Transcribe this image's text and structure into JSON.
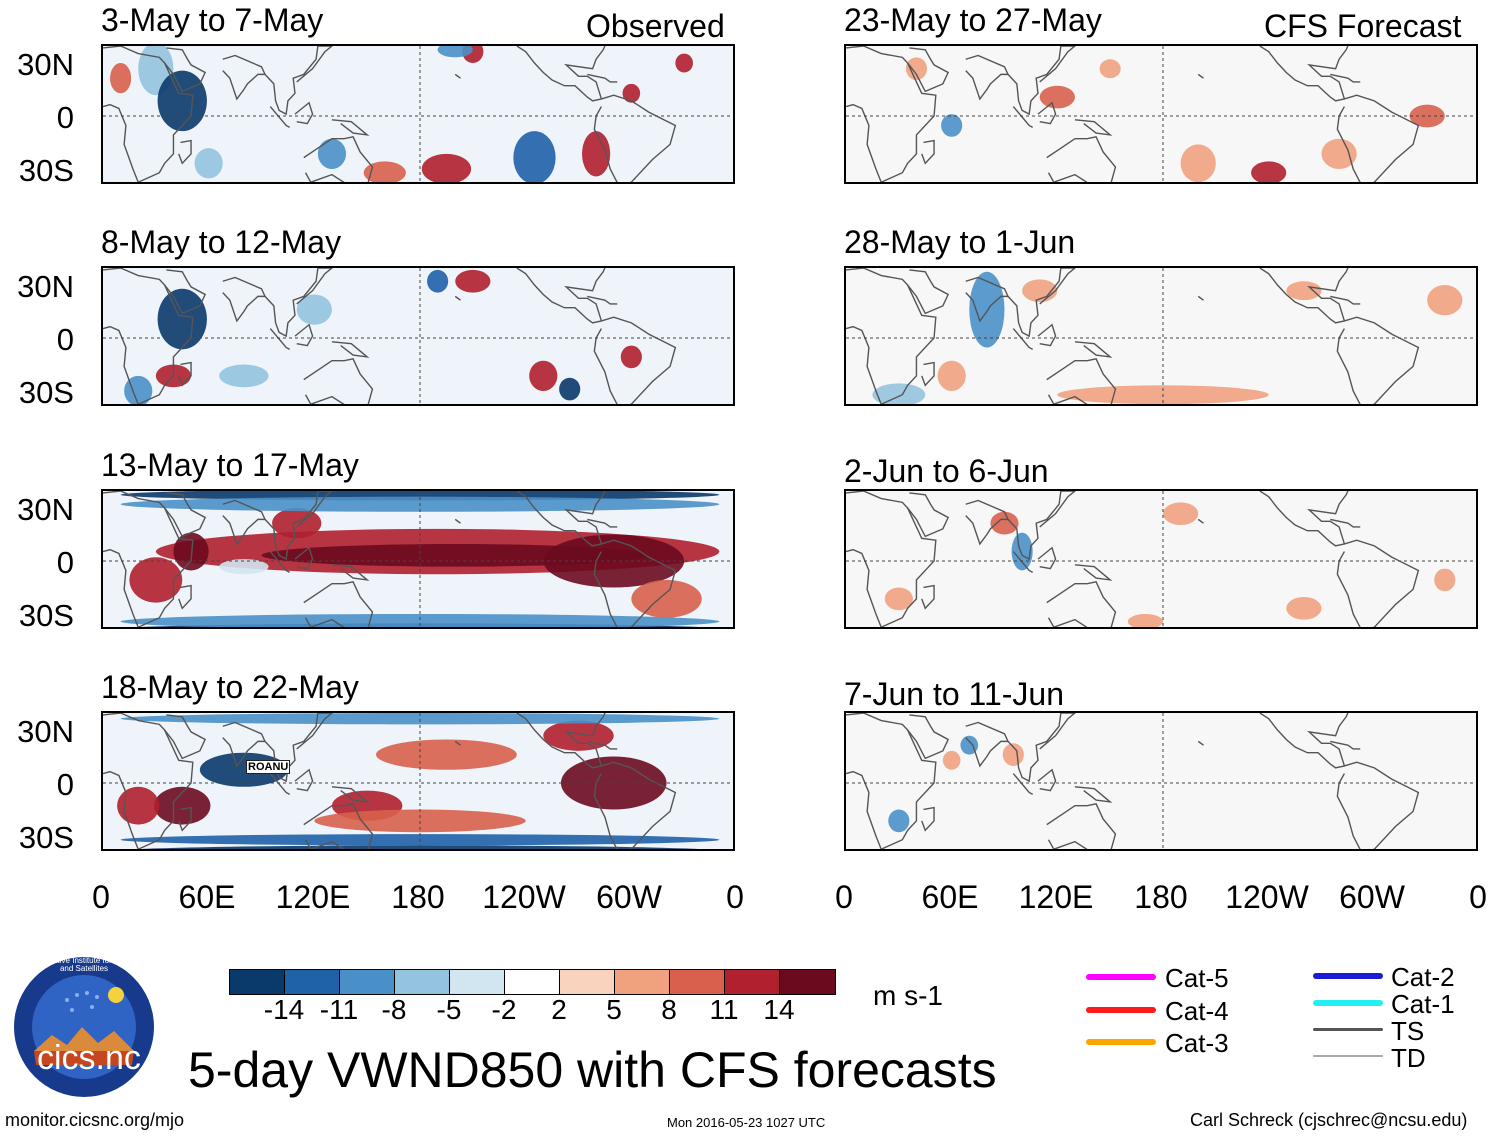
{
  "header": {
    "observed_label": "Observed",
    "forecast_label": "CFS Forecast"
  },
  "panels": {
    "observed": [
      {
        "period": "3-May to 7-May"
      },
      {
        "period": "8-May to 12-May"
      },
      {
        "period": "13-May to 17-May"
      },
      {
        "period": "18-May to 22-May",
        "storm": "ROANU"
      }
    ],
    "forecast": [
      {
        "period": "23-May to 27-May"
      },
      {
        "period": "28-May to 1-Jun"
      },
      {
        "period": "2-Jun to 6-Jun"
      },
      {
        "period": "7-Jun to 11-Jun"
      }
    ]
  },
  "axes": {
    "lat_labels": [
      "30N",
      "0",
      "30S"
    ],
    "lon_labels": [
      "0",
      "60E",
      "120E",
      "180",
      "120W",
      "60W",
      "0"
    ]
  },
  "colorbar": {
    "ticks": [
      "-14",
      "-11",
      "-8",
      "-5",
      "-2",
      "2",
      "5",
      "8",
      "11",
      "14"
    ],
    "units": "m s-1",
    "colors": [
      "#0a3a6b",
      "#1f62a8",
      "#4a90c8",
      "#93c3de",
      "#d2e6f1",
      "#ffffff",
      "#fad3bf",
      "#f0a27f",
      "#d8604d",
      "#b0202f",
      "#6b0a1f"
    ]
  },
  "title": "5-day VWND850 with CFS forecasts",
  "legend": {
    "items": [
      {
        "label": "Cat-5",
        "color": "#ff00ff"
      },
      {
        "label": "Cat-4",
        "color": "#ff1a1a"
      },
      {
        "label": "Cat-3",
        "color": "#ffa500"
      },
      {
        "label": "Cat-2",
        "color": "#1c1cd6"
      },
      {
        "label": "Cat-1",
        "color": "#22f0f0"
      },
      {
        "label": "TS",
        "color": "#555555"
      },
      {
        "label": "TD",
        "color": "#aaaaaa"
      }
    ]
  },
  "logo": {
    "text": "cics.nc",
    "ring_text": "Cooperative Institute for Climate and Satellites"
  },
  "footer": {
    "url": "monitor.cicsnc.org/mjo",
    "timestamp": "Mon 2016-05-23 1027 UTC",
    "author": "Carl Schreck (cjschrec@ncsu.edu)"
  }
}
